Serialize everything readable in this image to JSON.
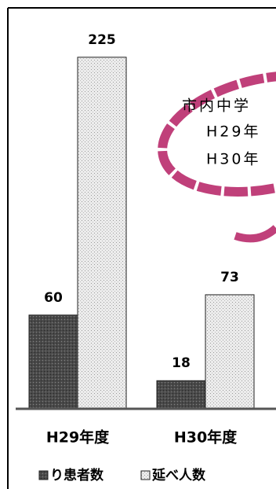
{
  "chart_data": {
    "type": "bar",
    "categories": [
      "H29年度",
      "H30年度"
    ],
    "series": [
      {
        "name": "り患者数",
        "color": "#4a4a4a",
        "values": [
          60,
          18
        ]
      },
      {
        "name": "延べ人数",
        "color": "#ececec",
        "values": [
          225,
          73
        ]
      }
    ],
    "ylim": [
      0,
      240
    ],
    "annotations": [
      "市内中学",
      "H29年",
      "H30年"
    ]
  }
}
